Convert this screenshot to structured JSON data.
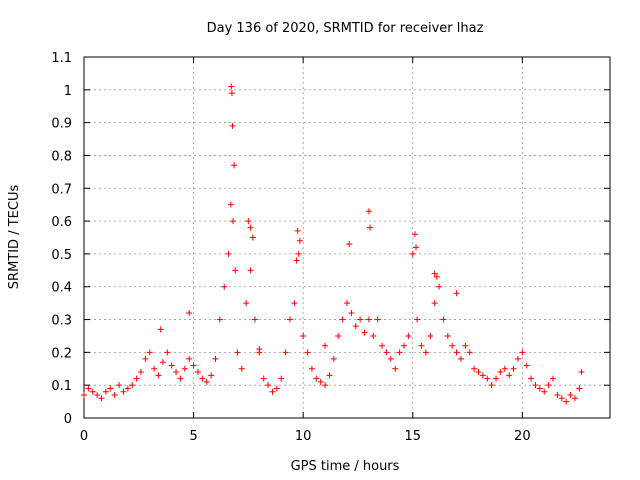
{
  "chart_data": {
    "type": "scatter",
    "title": "Day 136 of 2020, SRMTID for receiver lhaz",
    "xlabel": "GPS time / hours",
    "ylabel": "SRMTID / TECUs",
    "xlim": [
      0,
      24
    ],
    "ylim": [
      0,
      1.1
    ],
    "x_ticks": [
      0,
      5,
      10,
      15,
      20
    ],
    "y_ticks": [
      0,
      0.1,
      0.2,
      0.3,
      0.4,
      0.5,
      0.6,
      0.7,
      0.8,
      0.9,
      1,
      1.1
    ],
    "x_tick_labels": [
      "0",
      "5",
      "10",
      "15",
      "20"
    ],
    "y_tick_labels": [
      "0",
      "0.1",
      "0.2",
      "0.3",
      "0.4",
      "0.5",
      "0.6",
      "0.7",
      "0.8",
      "0.9",
      "1",
      "1.1"
    ],
    "grid": true,
    "marker": "+",
    "series": [
      {
        "name": "SRMTID",
        "color": "#ff0000",
        "x": [
          0.0,
          0.2,
          0.4,
          0.6,
          0.8,
          1.0,
          1.2,
          1.4,
          1.6,
          1.8,
          2.0,
          2.2,
          2.4,
          2.6,
          2.8,
          3.0,
          3.2,
          3.4,
          3.6,
          3.8,
          4.0,
          4.2,
          4.4,
          4.6,
          4.8,
          5.0,
          5.2,
          5.4,
          5.6,
          5.8,
          6.0,
          6.2,
          6.4,
          6.6,
          6.7,
          6.75,
          6.8,
          6.9,
          7.0,
          7.2,
          7.4,
          7.6,
          7.8,
          8.0,
          8.2,
          8.4,
          8.6,
          8.8,
          9.0,
          9.2,
          9.4,
          9.6,
          9.7,
          9.8,
          10.0,
          10.2,
          10.4,
          10.6,
          10.8,
          11.0,
          11.2,
          11.4,
          11.6,
          11.8,
          12.0,
          12.2,
          12.4,
          12.6,
          12.8,
          13.0,
          13.2,
          13.4,
          13.6,
          13.8,
          14.0,
          14.2,
          14.4,
          14.6,
          14.8,
          15.0,
          15.2,
          15.4,
          15.6,
          15.8,
          16.0,
          16.2,
          16.4,
          16.6,
          16.8,
          17.0,
          17.2,
          17.4,
          17.6,
          17.8,
          18.0,
          18.2,
          18.4,
          18.6,
          18.8,
          19.0,
          19.2,
          19.4,
          19.6,
          19.8,
          20.0,
          20.2,
          20.4,
          20.6,
          20.8,
          21.0,
          21.2,
          21.4,
          21.6,
          21.8,
          22.0,
          22.2,
          22.4,
          22.6,
          22.7,
          6.72,
          6.78,
          6.85,
          7.5,
          7.6,
          7.7,
          9.75,
          9.85,
          12.1,
          13.0,
          13.05,
          15.1,
          15.15,
          16.0,
          16.1,
          17.0,
          4.8,
          3.5,
          8.0,
          11.0
        ],
        "y": [
          0.07,
          0.09,
          0.08,
          0.07,
          0.06,
          0.08,
          0.09,
          0.07,
          0.1,
          0.08,
          0.09,
          0.1,
          0.12,
          0.14,
          0.18,
          0.2,
          0.15,
          0.13,
          0.17,
          0.2,
          0.16,
          0.14,
          0.12,
          0.15,
          0.18,
          0.16,
          0.14,
          0.12,
          0.11,
          0.13,
          0.18,
          0.3,
          0.4,
          0.5,
          0.65,
          0.99,
          0.6,
          0.45,
          0.2,
          0.15,
          0.35,
          0.45,
          0.3,
          0.2,
          0.12,
          0.1,
          0.08,
          0.09,
          0.12,
          0.2,
          0.3,
          0.35,
          0.48,
          0.5,
          0.25,
          0.2,
          0.15,
          0.12,
          0.11,
          0.1,
          0.13,
          0.18,
          0.25,
          0.3,
          0.35,
          0.32,
          0.28,
          0.3,
          0.26,
          0.3,
          0.25,
          0.3,
          0.22,
          0.2,
          0.18,
          0.15,
          0.2,
          0.22,
          0.25,
          0.5,
          0.3,
          0.22,
          0.2,
          0.25,
          0.35,
          0.4,
          0.3,
          0.25,
          0.22,
          0.2,
          0.18,
          0.22,
          0.2,
          0.15,
          0.14,
          0.13,
          0.12,
          0.1,
          0.12,
          0.14,
          0.15,
          0.13,
          0.15,
          0.18,
          0.2,
          0.16,
          0.12,
          0.1,
          0.09,
          0.08,
          0.1,
          0.12,
          0.07,
          0.06,
          0.05,
          0.07,
          0.06,
          0.09,
          0.14,
          1.01,
          0.89,
          0.77,
          0.6,
          0.58,
          0.55,
          0.57,
          0.54,
          0.53,
          0.63,
          0.58,
          0.56,
          0.52,
          0.44,
          0.43,
          0.38,
          0.32,
          0.27,
          0.21,
          0.22
        ]
      }
    ]
  }
}
